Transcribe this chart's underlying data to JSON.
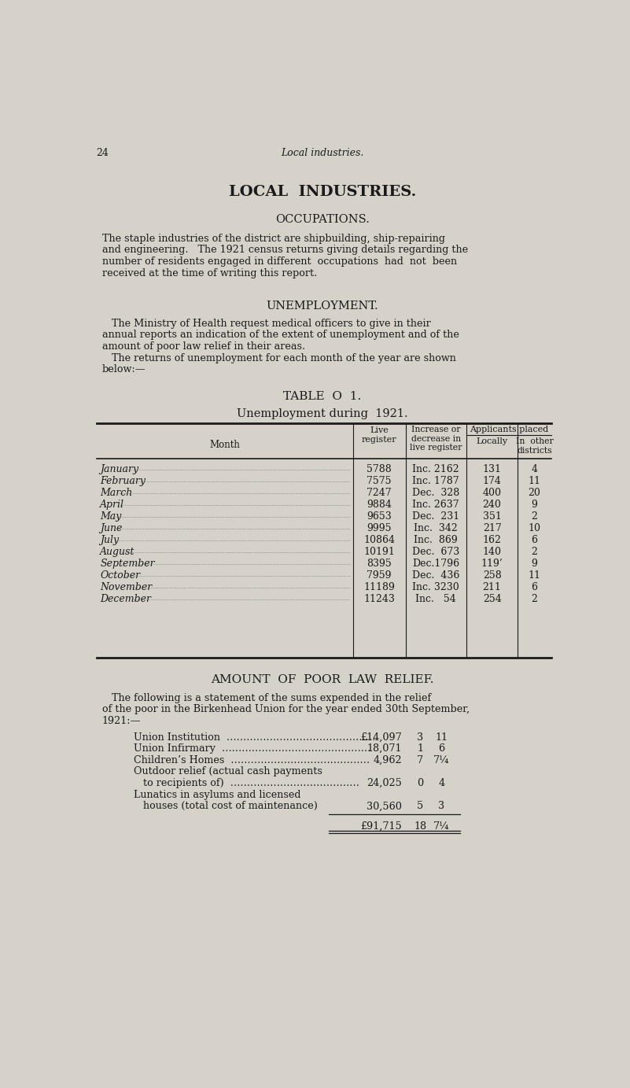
{
  "bg_color": "#d6d2ca",
  "text_color": "#1a1a1a",
  "page_number": "24",
  "header_italic": "Local industries.",
  "main_title": "LOCAL  INDUSTRIES.",
  "section1_title": "OCCUPATIONS.",
  "para1_lines": [
    "The staple industries of the district are shipbuilding, ship-repairing",
    "and engineering.   The 1921 census returns giving details regarding the",
    "number of residents engaged in different  occupations  had  not  been",
    "received at the time of writing this report."
  ],
  "section2_title": "UNEMPLOYMENT.",
  "para2_lines": [
    "   The Ministry of Health request medical officers to give in their",
    "annual reports an indication of the extent of unemployment and of the",
    "amount of poor law relief in their areas.",
    "   The returns of unemployment for each month of the year are shown",
    "below:—"
  ],
  "table_title1": "TABLE  O  1.",
  "table_title2": "Unemployment during  1921.",
  "col_header_span": "Applicants placed",
  "col_h_month": "Month",
  "col_h_live": "Live\nregister",
  "col_h_incdec": "Increase or\ndecrease in\nlive register",
  "col_h_locally": "Locally",
  "col_h_other": "In  other\ndistricts",
  "rows": [
    [
      "January",
      "5788",
      "Inc. 2162",
      "131",
      "4"
    ],
    [
      "February",
      "7575",
      "Inc. 1787",
      "174",
      "11"
    ],
    [
      "March",
      "7247",
      "Dec.  328",
      "400",
      "20"
    ],
    [
      "April",
      "9884",
      "Inc. 2637",
      "240",
      "9"
    ],
    [
      "May",
      "9653",
      "Dec.  231",
      "351",
      "2"
    ],
    [
      "June",
      "9995",
      "Inc.  342",
      "217",
      "10"
    ],
    [
      "July",
      "10864",
      "Inc.  869",
      "162",
      "6"
    ],
    [
      "August",
      "10191",
      "Dec.  673",
      "140",
      "2"
    ],
    [
      "September",
      "8395",
      "Dec.1796",
      "119’",
      "9"
    ],
    [
      "October",
      "7959",
      "Dec.  436",
      "258",
      "11"
    ],
    [
      "November",
      "11189",
      "Inc. 3230",
      "211",
      "6"
    ],
    [
      "December",
      "11243",
      "Inc.   54",
      "254",
      "2"
    ]
  ],
  "section3_title": "AMOUNT  OF  POOR  LAW  RELIEF.",
  "para4_lines": [
    "   The following is a statement of the sums expended in the relief",
    "of the poor in the Birkenhead Union for the year ended 30th September,",
    "1921:—"
  ],
  "relief_items": [
    [
      "Union Institution  ………………………………………",
      "£14,097",
      "3",
      "11"
    ],
    [
      "Union Infirmary  ………………………………………",
      "18,071",
      "1",
      "6"
    ],
    [
      "Children’s Homes  ……………………………………",
      "4,962",
      "7",
      "7¼"
    ],
    [
      "Outdoor relief (actual cash payments",
      "",
      "",
      ""
    ],
    [
      "   to recipients of)  …………………………………",
      "24,025",
      "0",
      "4"
    ],
    [
      "Lunatics in asylums and licensed",
      "",
      "",
      ""
    ],
    [
      "   houses (total cost of maintenance)",
      "30,560",
      "5",
      "3"
    ]
  ],
  "relief_total": [
    "£91,715",
    "18",
    "7¼"
  ]
}
